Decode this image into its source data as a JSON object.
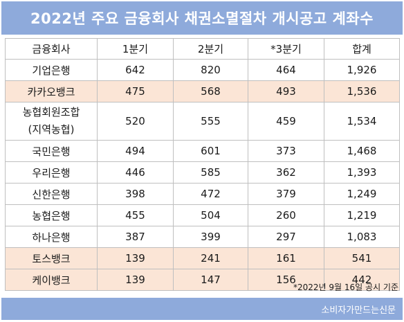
{
  "title": "2022년 주요 금융회사 채권소멸절차 개시공고 계좌수",
  "table": {
    "headers": [
      "금융회사",
      "1분기",
      "2분기",
      "*3분기",
      "합계"
    ],
    "rows": [
      {
        "name": "기업은행",
        "q1": "642",
        "q2": "820",
        "q3": "464",
        "total": "1,926"
      },
      {
        "name": "카카오뱅크",
        "q1": "475",
        "q2": "568",
        "q3": "493",
        "total": "1,536"
      },
      {
        "name": "농협회원조합",
        "name2": "(지역농협)",
        "q1": "520",
        "q2": "555",
        "q3": "459",
        "total": "1,534"
      },
      {
        "name": "국민은행",
        "q1": "494",
        "q2": "601",
        "q3": "373",
        "total": "1,468"
      },
      {
        "name": "우리은행",
        "q1": "446",
        "q2": "585",
        "q3": "362",
        "total": "1,393"
      },
      {
        "name": "신한은행",
        "q1": "398",
        "q2": "472",
        "q3": "379",
        "total": "1,249"
      },
      {
        "name": "농협은행",
        "q1": "455",
        "q2": "504",
        "q3": "260",
        "total": "1,219"
      },
      {
        "name": "하나은행",
        "q1": "387",
        "q2": "399",
        "q3": "297",
        "total": "1,083"
      },
      {
        "name": "토스뱅크",
        "q1": "139",
        "q2": "241",
        "q3": "161",
        "total": "541"
      },
      {
        "name": "케이뱅크",
        "q1": "139",
        "q2": "147",
        "q3": "156",
        "total": "442"
      }
    ]
  },
  "note": "*2022년 9월 16일 공시 기준",
  "footer": "소비자가만드는신문",
  "colors": {
    "banner": "#8eaadb",
    "highlight_row": "#fbe5d6",
    "border": "#bfbfbf"
  }
}
